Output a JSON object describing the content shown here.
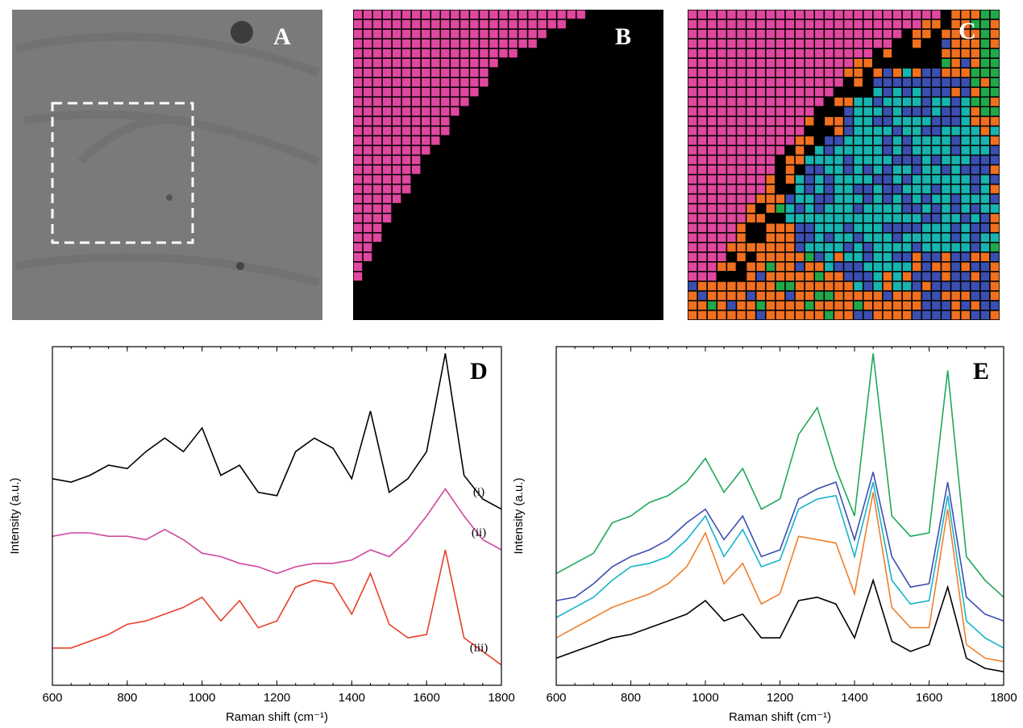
{
  "panels": [
    {
      "label": "A"
    },
    {
      "label": "B"
    },
    {
      "label": "C"
    }
  ],
  "chart_data": [
    {
      "type": "line",
      "panel_label": "D",
      "x_label": "Raman shift (cm⁻¹)",
      "y_label": "Intensity (a.u.)",
      "xlim": [
        600,
        1800
      ],
      "xticks": [
        600,
        800,
        1000,
        1200,
        1400,
        1600,
        1800
      ],
      "ylim": [
        0,
        100
      ],
      "yticks": [],
      "x": [
        600,
        650,
        700,
        750,
        800,
        850,
        900,
        950,
        1000,
        1050,
        1100,
        1150,
        1200,
        1250,
        1300,
        1350,
        1400,
        1450,
        1500,
        1550,
        1600,
        1650,
        1700,
        1750,
        1800
      ],
      "series": [
        {
          "name": "(i)",
          "color": "#000000",
          "values": [
            61,
            60,
            62,
            65,
            64,
            69,
            73,
            69,
            76,
            62,
            65,
            57,
            56,
            69,
            73,
            70,
            61,
            81,
            57,
            61,
            69,
            98,
            62,
            55,
            52
          ]
        },
        {
          "name": "(ii)",
          "color": "#d0479e",
          "values": [
            44,
            45,
            45,
            44,
            44,
            43,
            46,
            43,
            39,
            38,
            36,
            35,
            33,
            35,
            36,
            36,
            37,
            40,
            38,
            43,
            50,
            58,
            50,
            43,
            40
          ]
        },
        {
          "name": "(iii)",
          "color": "#e8402a",
          "values": [
            11,
            11,
            13,
            15,
            18,
            19,
            21,
            23,
            26,
            19,
            25,
            17,
            19,
            29,
            31,
            30,
            21,
            33,
            18,
            14,
            15,
            40,
            14,
            10,
            6
          ]
        }
      ]
    },
    {
      "type": "line",
      "panel_label": "E",
      "x_label": "Raman shift (cm⁻¹)",
      "y_label": "Intensity (a.u.)",
      "xlim": [
        600,
        1800
      ],
      "xticks": [
        600,
        800,
        1000,
        1200,
        1400,
        1600,
        1800
      ],
      "ylim": [
        0,
        100
      ],
      "yticks": [],
      "x": [
        600,
        650,
        700,
        750,
        800,
        850,
        900,
        950,
        1000,
        1050,
        1100,
        1150,
        1200,
        1250,
        1300,
        1350,
        1400,
        1450,
        1500,
        1550,
        1600,
        1650,
        1700,
        1750,
        1800
      ],
      "series": [
        {
          "color": "#1fa85a",
          "values": [
            33,
            36,
            39,
            48,
            50,
            54,
            56,
            60,
            67,
            57,
            64,
            52,
            55,
            74,
            82,
            64,
            50,
            98,
            50,
            44,
            45,
            93,
            38,
            31,
            26
          ]
        },
        {
          "color": "#3b4fb0",
          "values": [
            25,
            26,
            30,
            35,
            38,
            40,
            43,
            48,
            52,
            43,
            50,
            38,
            40,
            55,
            58,
            60,
            43,
            63,
            38,
            29,
            30,
            60,
            26,
            21,
            19
          ]
        },
        {
          "color": "#17b4c8",
          "values": [
            20,
            23,
            26,
            31,
            35,
            36,
            38,
            43,
            50,
            38,
            46,
            35,
            37,
            52,
            55,
            56,
            38,
            60,
            31,
            24,
            25,
            56,
            19,
            14,
            11
          ]
        },
        {
          "color": "#f07f2a",
          "values": [
            14,
            17,
            20,
            23,
            25,
            27,
            30,
            35,
            45,
            30,
            36,
            24,
            27,
            44,
            43,
            42,
            27,
            57,
            23,
            17,
            17,
            52,
            12,
            8,
            7
          ]
        },
        {
          "color": "#000000",
          "values": [
            8,
            10,
            12,
            14,
            15,
            17,
            19,
            21,
            25,
            19,
            21,
            14,
            14,
            25,
            26,
            24,
            14,
            31,
            13,
            10,
            12,
            29,
            8,
            5,
            4
          ]
        }
      ]
    }
  ]
}
